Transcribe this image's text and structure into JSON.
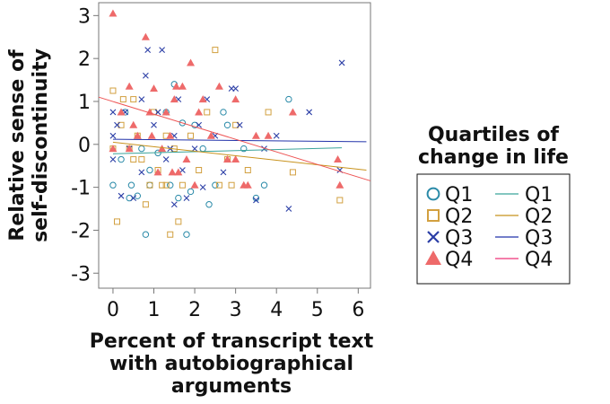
{
  "chart_data": {
    "type": "scatter",
    "title": "",
    "xlabel": [
      "Percent of transcript text",
      "with autobiographical",
      "arguments"
    ],
    "ylabel": [
      "Relative sense of",
      "self-discontinuity"
    ],
    "xlim": [
      -0.35,
      6.3
    ],
    "ylim": [
      -3.35,
      3.3
    ],
    "xticks": [
      "0",
      "1",
      "2",
      "3",
      "4",
      "5",
      "6"
    ],
    "yticks": [
      "-3",
      "-2",
      "-1",
      "0",
      "1",
      "2",
      "3"
    ],
    "grid": false,
    "legend": {
      "title": [
        "Quartiles of",
        "change in life"
      ],
      "position": "right",
      "point_labels": [
        "Q1",
        "Q2",
        "Q3",
        "Q4"
      ],
      "line_labels": [
        "Q1",
        "Q2",
        "Q3",
        "Q4"
      ]
    },
    "series": [
      {
        "name": "Q1",
        "marker": "circle-open",
        "color": "#2a8aa8",
        "trend": [
          [
            0,
            -0.22
          ],
          [
            5.6,
            -0.08
          ]
        ],
        "points": [
          [
            0,
            -0.95
          ],
          [
            0.2,
            -0.35
          ],
          [
            0.3,
            0.75
          ],
          [
            0.4,
            -1.25
          ],
          [
            0.45,
            -0.95
          ],
          [
            0.6,
            -1.2
          ],
          [
            0.7,
            -0.1
          ],
          [
            0.8,
            -2.1
          ],
          [
            0.9,
            -0.6
          ],
          [
            1.1,
            -0.2
          ],
          [
            1.3,
            0.75
          ],
          [
            1.4,
            -0.95
          ],
          [
            1.5,
            1.4
          ],
          [
            1.6,
            -1.25
          ],
          [
            1.7,
            0.5
          ],
          [
            1.8,
            -2.1
          ],
          [
            2.0,
            0.45
          ],
          [
            2.2,
            -0.1
          ],
          [
            2.35,
            -1.4
          ],
          [
            2.5,
            -0.95
          ],
          [
            2.7,
            0.75
          ],
          [
            2.8,
            0.45
          ],
          [
            3.2,
            -0.1
          ],
          [
            3.5,
            -1.25
          ],
          [
            3.7,
            -0.95
          ],
          [
            4.3,
            1.05
          ],
          [
            0.9,
            -0.95
          ],
          [
            1.9,
            -1.1
          ]
        ]
      },
      {
        "name": "Q2",
        "marker": "square-open",
        "color": "#d2a040",
        "trend": [
          [
            0,
            0.05
          ],
          [
            6.2,
            -0.6
          ]
        ],
        "points": [
          [
            0,
            1.25
          ],
          [
            0,
            -0.1
          ],
          [
            0.1,
            -1.8
          ],
          [
            0.2,
            0.45
          ],
          [
            0.25,
            1.05
          ],
          [
            0.4,
            -0.1
          ],
          [
            0.5,
            1.05
          ],
          [
            0.6,
            0.2
          ],
          [
            0.7,
            -0.35
          ],
          [
            0.8,
            -1.4
          ],
          [
            0.9,
            -0.95
          ],
          [
            1.0,
            0.75
          ],
          [
            1.1,
            -0.6
          ],
          [
            1.2,
            -0.95
          ],
          [
            1.3,
            0.2
          ],
          [
            1.4,
            -2.1
          ],
          [
            1.5,
            -0.1
          ],
          [
            1.6,
            -1.8
          ],
          [
            1.7,
            -0.95
          ],
          [
            1.9,
            0.2
          ],
          [
            2.1,
            -0.6
          ],
          [
            2.3,
            0.75
          ],
          [
            2.5,
            2.2
          ],
          [
            2.6,
            -0.95
          ],
          [
            2.8,
            -0.35
          ],
          [
            3.0,
            0.45
          ],
          [
            3.3,
            -0.6
          ],
          [
            3.8,
            0.75
          ],
          [
            4.4,
            -0.65
          ],
          [
            5.55,
            -1.3
          ],
          [
            0.5,
            -0.35
          ],
          [
            1.3,
            -0.95
          ],
          [
            2.9,
            -0.95
          ]
        ]
      },
      {
        "name": "Q3",
        "marker": "x",
        "color": "#2b3ea6",
        "trend": [
          [
            0,
            0.12
          ],
          [
            6.2,
            0.06
          ]
        ],
        "points": [
          [
            0,
            0.75
          ],
          [
            0,
            0.2
          ],
          [
            0,
            -0.35
          ],
          [
            0.1,
            0.45
          ],
          [
            0.2,
            -1.2
          ],
          [
            0.3,
            0.75
          ],
          [
            0.4,
            -0.1
          ],
          [
            0.5,
            -1.25
          ],
          [
            0.7,
            1.05
          ],
          [
            0.8,
            1.6
          ],
          [
            0.85,
            2.2
          ],
          [
            1.0,
            0.45
          ],
          [
            1.1,
            0.75
          ],
          [
            1.2,
            2.2
          ],
          [
            1.3,
            -0.35
          ],
          [
            1.4,
            -0.1
          ],
          [
            1.5,
            -1.4
          ],
          [
            1.6,
            1.05
          ],
          [
            1.7,
            -0.6
          ],
          [
            1.8,
            -1.25
          ],
          [
            2.0,
            -0.1
          ],
          [
            2.1,
            0.45
          ],
          [
            2.3,
            1.05
          ],
          [
            2.5,
            0.2
          ],
          [
            2.7,
            -0.65
          ],
          [
            2.9,
            1.3
          ],
          [
            3.0,
            1.3
          ],
          [
            3.1,
            0.45
          ],
          [
            3.5,
            -1.3
          ],
          [
            3.7,
            -0.1
          ],
          [
            4.0,
            0.2
          ],
          [
            4.3,
            -1.5
          ],
          [
            4.8,
            0.75
          ],
          [
            5.6,
            1.9
          ],
          [
            5.55,
            -0.6
          ],
          [
            0.7,
            -0.65
          ],
          [
            1.5,
            0.2
          ],
          [
            2.2,
            -1.0
          ]
        ]
      },
      {
        "name": "Q4",
        "marker": "triangle",
        "color": "#ee6a6a",
        "trend": [
          [
            -0.35,
            1.1
          ],
          [
            6.3,
            -0.85
          ]
        ],
        "points": [
          [
            0,
            3.05
          ],
          [
            0,
            -0.1
          ],
          [
            0.2,
            0.75
          ],
          [
            0.4,
            1.35
          ],
          [
            0.4,
            -0.1
          ],
          [
            0.5,
            0.45
          ],
          [
            0.6,
            0.2
          ],
          [
            0.8,
            2.5
          ],
          [
            0.9,
            0.75
          ],
          [
            1.0,
            1.3
          ],
          [
            1.1,
            -0.65
          ],
          [
            1.2,
            -0.1
          ],
          [
            1.3,
            0.75
          ],
          [
            1.4,
            0.2
          ],
          [
            1.5,
            1.05
          ],
          [
            1.55,
            1.35
          ],
          [
            1.6,
            -0.65
          ],
          [
            1.7,
            1.35
          ],
          [
            1.8,
            -0.35
          ],
          [
            1.9,
            1.9
          ],
          [
            2.0,
            -0.95
          ],
          [
            2.1,
            0.75
          ],
          [
            2.2,
            1.05
          ],
          [
            2.4,
            0.2
          ],
          [
            2.6,
            1.35
          ],
          [
            2.8,
            -0.35
          ],
          [
            3.0,
            1.05
          ],
          [
            3.2,
            -0.95
          ],
          [
            3.3,
            -0.95
          ],
          [
            3.5,
            0.2
          ],
          [
            3.8,
            0.2
          ],
          [
            4.4,
            0.75
          ],
          [
            5.5,
            -0.35
          ],
          [
            5.55,
            -0.95
          ],
          [
            0.95,
            0.2
          ],
          [
            1.45,
            -0.65
          ],
          [
            3.0,
            -0.35
          ]
        ]
      }
    ]
  }
}
